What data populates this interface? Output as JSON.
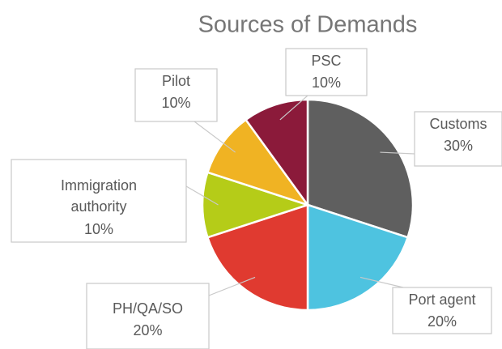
{
  "chart_data": {
    "type": "pie",
    "title": "Sources of Demands",
    "categories": [
      "Customs",
      "Port agent",
      "PH/QA/SO",
      "Immigration authority",
      "Pilot",
      "PSC"
    ],
    "values": [
      30,
      20,
      20,
      10,
      10,
      10
    ],
    "value_labels": [
      "30%",
      "20%",
      "20%",
      "10%",
      "10%",
      "10%"
    ],
    "colors": [
      "#5f5f5f",
      "#4ec3e0",
      "#e03a30",
      "#b5cc18",
      "#f0b323",
      "#8b1a3a"
    ]
  }
}
